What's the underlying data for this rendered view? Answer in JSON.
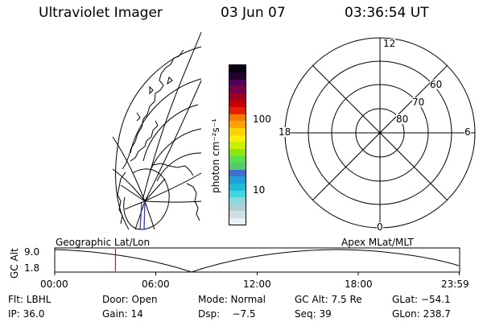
{
  "header": {
    "instrument": "Ultraviolet Imager",
    "date": "03 Jun 07",
    "time": "03:36:54 UT"
  },
  "colorbar": {
    "unit_label": "photon cm⁻²s⁻¹",
    "ticks": [
      "100",
      "10"
    ],
    "colors": [
      "#e9f1f3",
      "#d0dde3",
      "#b2cfd4",
      "#8ad8dc",
      "#41d6e2",
      "#21bbd7",
      "#1ea0d6",
      "#3f70d1",
      "#58c96d",
      "#55e04a",
      "#89e80d",
      "#cbef00",
      "#f7f100",
      "#fbd400",
      "#ffa200",
      "#f67a00",
      "#e91f00",
      "#c80000",
      "#a00025",
      "#7b004a",
      "#51005d",
      "#24002f",
      "#0b0010"
    ]
  },
  "polar": {
    "labels": {
      "top": "12",
      "bottom": "0",
      "left": "18",
      "right": "6"
    },
    "rings": [
      "60",
      "70",
      "80"
    ]
  },
  "altitude_strip": {
    "axis_label": "GC Alt",
    "y_ticks": [
      "9.0",
      "1.8"
    ],
    "left_title": "Geographic Lat/Lon",
    "right_title": "Apex MLat/MLT",
    "x_ticks": [
      "00:00",
      "06:00",
      "12:00",
      "18:00",
      "23:59"
    ],
    "marker_time_hours": 3.6
  },
  "footer": {
    "row1": {
      "filter": "Flt: LBHL",
      "door": "Door: Open",
      "mode": "Mode: Normal",
      "gc_alt": "GC Alt: 7.5 Re",
      "glat": "GLat: −54.1"
    },
    "row2": {
      "ip": "IP: 36.0",
      "gain": "Gain: 14",
      "dsp": "Dsp:    −7.5",
      "seq": "Seq: 39",
      "glon": "GLon: 238.7"
    }
  }
}
